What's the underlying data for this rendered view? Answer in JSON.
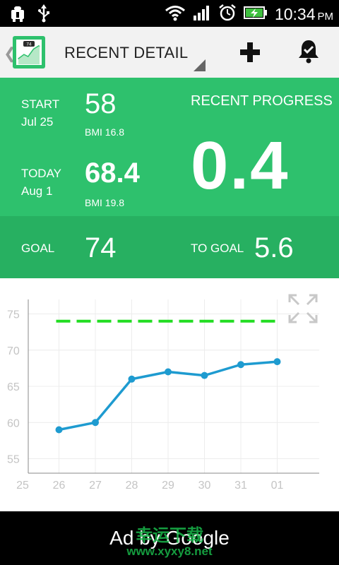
{
  "status_bar": {
    "time": "10:34",
    "ampm": "PM",
    "left_icons": [
      "android-debug-icon",
      "usb-icon"
    ],
    "right_icons": [
      "wifi-icon",
      "signal-icon",
      "alarm-icon",
      "battery-charging-icon"
    ]
  },
  "action_bar": {
    "title": "RECENT DETAIL",
    "app_icon_badge": "74"
  },
  "summary": {
    "start_label": "START",
    "start_date": "Jul 25",
    "start_weight": "58",
    "start_bmi": "BMI 16.8",
    "today_label": "TODAY",
    "today_date": "Aug 1",
    "today_weight": "68.4",
    "today_bmi": "BMI 19.8",
    "progress_label": "RECENT PROGRESS",
    "progress_value": "0.4",
    "goal_label": "GOAL",
    "goal_value": "74",
    "to_goal_label": "TO GOAL",
    "to_goal_value": "5.6"
  },
  "colors": {
    "green": "#2ec16d",
    "green_dark": "#27b061",
    "series_line": "#1e9bd0",
    "goal_line": "#22dd22"
  },
  "chart_data": {
    "type": "line",
    "x": [
      "25",
      "26",
      "27",
      "28",
      "29",
      "30",
      "31",
      "01"
    ],
    "y_ticks": [
      55,
      60,
      65,
      70,
      75
    ],
    "ylim": [
      53,
      77
    ],
    "grid": true,
    "series": [
      {
        "values": [
          null,
          59,
          60,
          66,
          67,
          66.5,
          68,
          68.4
        ]
      }
    ],
    "goal_line": 74
  },
  "ad": {
    "text": "Ad by Google",
    "watermark": "幸运下载",
    "watermark_url": "www.xyxy8.net"
  }
}
